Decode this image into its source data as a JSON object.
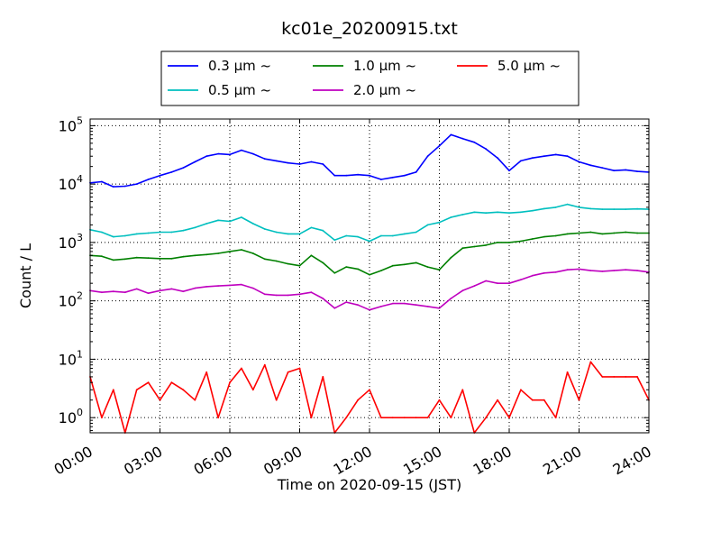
{
  "chart_data": {
    "type": "line",
    "title": "kc01e_20200915.txt",
    "xlabel": "Time on 2020-09-15 (JST)",
    "ylabel": "Count / L",
    "y_scale": "log",
    "ylim": [
      0.55,
      130000
    ],
    "xlim": [
      "00:00",
      "24:00"
    ],
    "x_ticks": [
      "00:00",
      "03:00",
      "06:00",
      "09:00",
      "12:00",
      "15:00",
      "18:00",
      "21:00",
      "24:00"
    ],
    "y_ticks": [
      "10^0",
      "10^1",
      "10^2",
      "10^3",
      "10^4",
      "10^5"
    ],
    "grid": true,
    "legend_position": "top-center, above plot",
    "x": [
      "00:00",
      "00:30",
      "01:00",
      "01:30",
      "02:00",
      "02:30",
      "03:00",
      "03:30",
      "04:00",
      "04:30",
      "05:00",
      "05:30",
      "06:00",
      "06:30",
      "07:00",
      "07:30",
      "08:00",
      "08:30",
      "09:00",
      "09:30",
      "10:00",
      "10:30",
      "11:00",
      "11:30",
      "12:00",
      "12:30",
      "13:00",
      "13:30",
      "14:00",
      "14:30",
      "15:00",
      "15:30",
      "16:00",
      "16:30",
      "17:00",
      "17:30",
      "18:00",
      "18:30",
      "19:00",
      "19:30",
      "20:00",
      "20:30",
      "21:00",
      "21:30",
      "22:00",
      "22:30",
      "23:00",
      "23:30",
      "24:00"
    ],
    "series": [
      {
        "name": "0.3 µm ~",
        "color": "#0000ff",
        "values": [
          10500,
          11000,
          9000,
          9200,
          10000,
          12000,
          14000,
          16000,
          19000,
          24000,
          30000,
          33000,
          32000,
          38000,
          33000,
          27000,
          25000,
          23000,
          22000,
          24000,
          22000,
          14000,
          14000,
          14500,
          14000,
          12000,
          13000,
          14000,
          16000,
          30000,
          45000,
          70000,
          60000,
          52000,
          40000,
          28000,
          17000,
          25000,
          28000,
          30000,
          32000,
          30000,
          24000,
          21000,
          19000,
          17000,
          17500,
          16500,
          16000
        ]
      },
      {
        "name": "0.5 µm ~",
        "color": "#00bfbf",
        "values": [
          1650,
          1500,
          1250,
          1300,
          1400,
          1450,
          1500,
          1500,
          1600,
          1800,
          2100,
          2400,
          2300,
          2700,
          2100,
          1700,
          1500,
          1400,
          1400,
          1800,
          1600,
          1100,
          1300,
          1250,
          1050,
          1300,
          1300,
          1400,
          1500,
          2000,
          2200,
          2700,
          3000,
          3300,
          3200,
          3300,
          3200,
          3300,
          3500,
          3800,
          4000,
          4500,
          4000,
          3800,
          3700,
          3700,
          3700,
          3750,
          3700
        ]
      },
      {
        "name": "1.0 µm ~",
        "color": "#008000",
        "values": [
          600,
          580,
          500,
          520,
          550,
          540,
          530,
          530,
          570,
          600,
          620,
          650,
          700,
          750,
          650,
          520,
          480,
          430,
          400,
          600,
          450,
          300,
          380,
          350,
          280,
          330,
          400,
          420,
          450,
          380,
          340,
          550,
          800,
          850,
          900,
          1000,
          1000,
          1050,
          1150,
          1250,
          1300,
          1400,
          1450,
          1500,
          1400,
          1450,
          1500,
          1450,
          1450
        ]
      },
      {
        "name": "2.0 µm ~",
        "color": "#bf00bf",
        "values": [
          150,
          140,
          145,
          140,
          160,
          135,
          150,
          160,
          145,
          165,
          175,
          180,
          185,
          190,
          165,
          130,
          125,
          125,
          130,
          140,
          110,
          75,
          95,
          85,
          70,
          80,
          90,
          90,
          85,
          80,
          75,
          110,
          150,
          180,
          220,
          200,
          200,
          230,
          270,
          300,
          310,
          340,
          350,
          330,
          320,
          330,
          340,
          330,
          310
        ]
      },
      {
        "name": "5.0 µm ~",
        "color": "#ff0000",
        "values": [
          5,
          1,
          3,
          0.55,
          3,
          4,
          2,
          4,
          3,
          2,
          6,
          1,
          4,
          7,
          3,
          8,
          2,
          6,
          7,
          1,
          5,
          0.55,
          1,
          2,
          3,
          1,
          1,
          1,
          1,
          1,
          2,
          1,
          3,
          0.55,
          1,
          2,
          1,
          3,
          2,
          2,
          1,
          6,
          2,
          9,
          5,
          5,
          5,
          5,
          2
        ]
      }
    ]
  }
}
